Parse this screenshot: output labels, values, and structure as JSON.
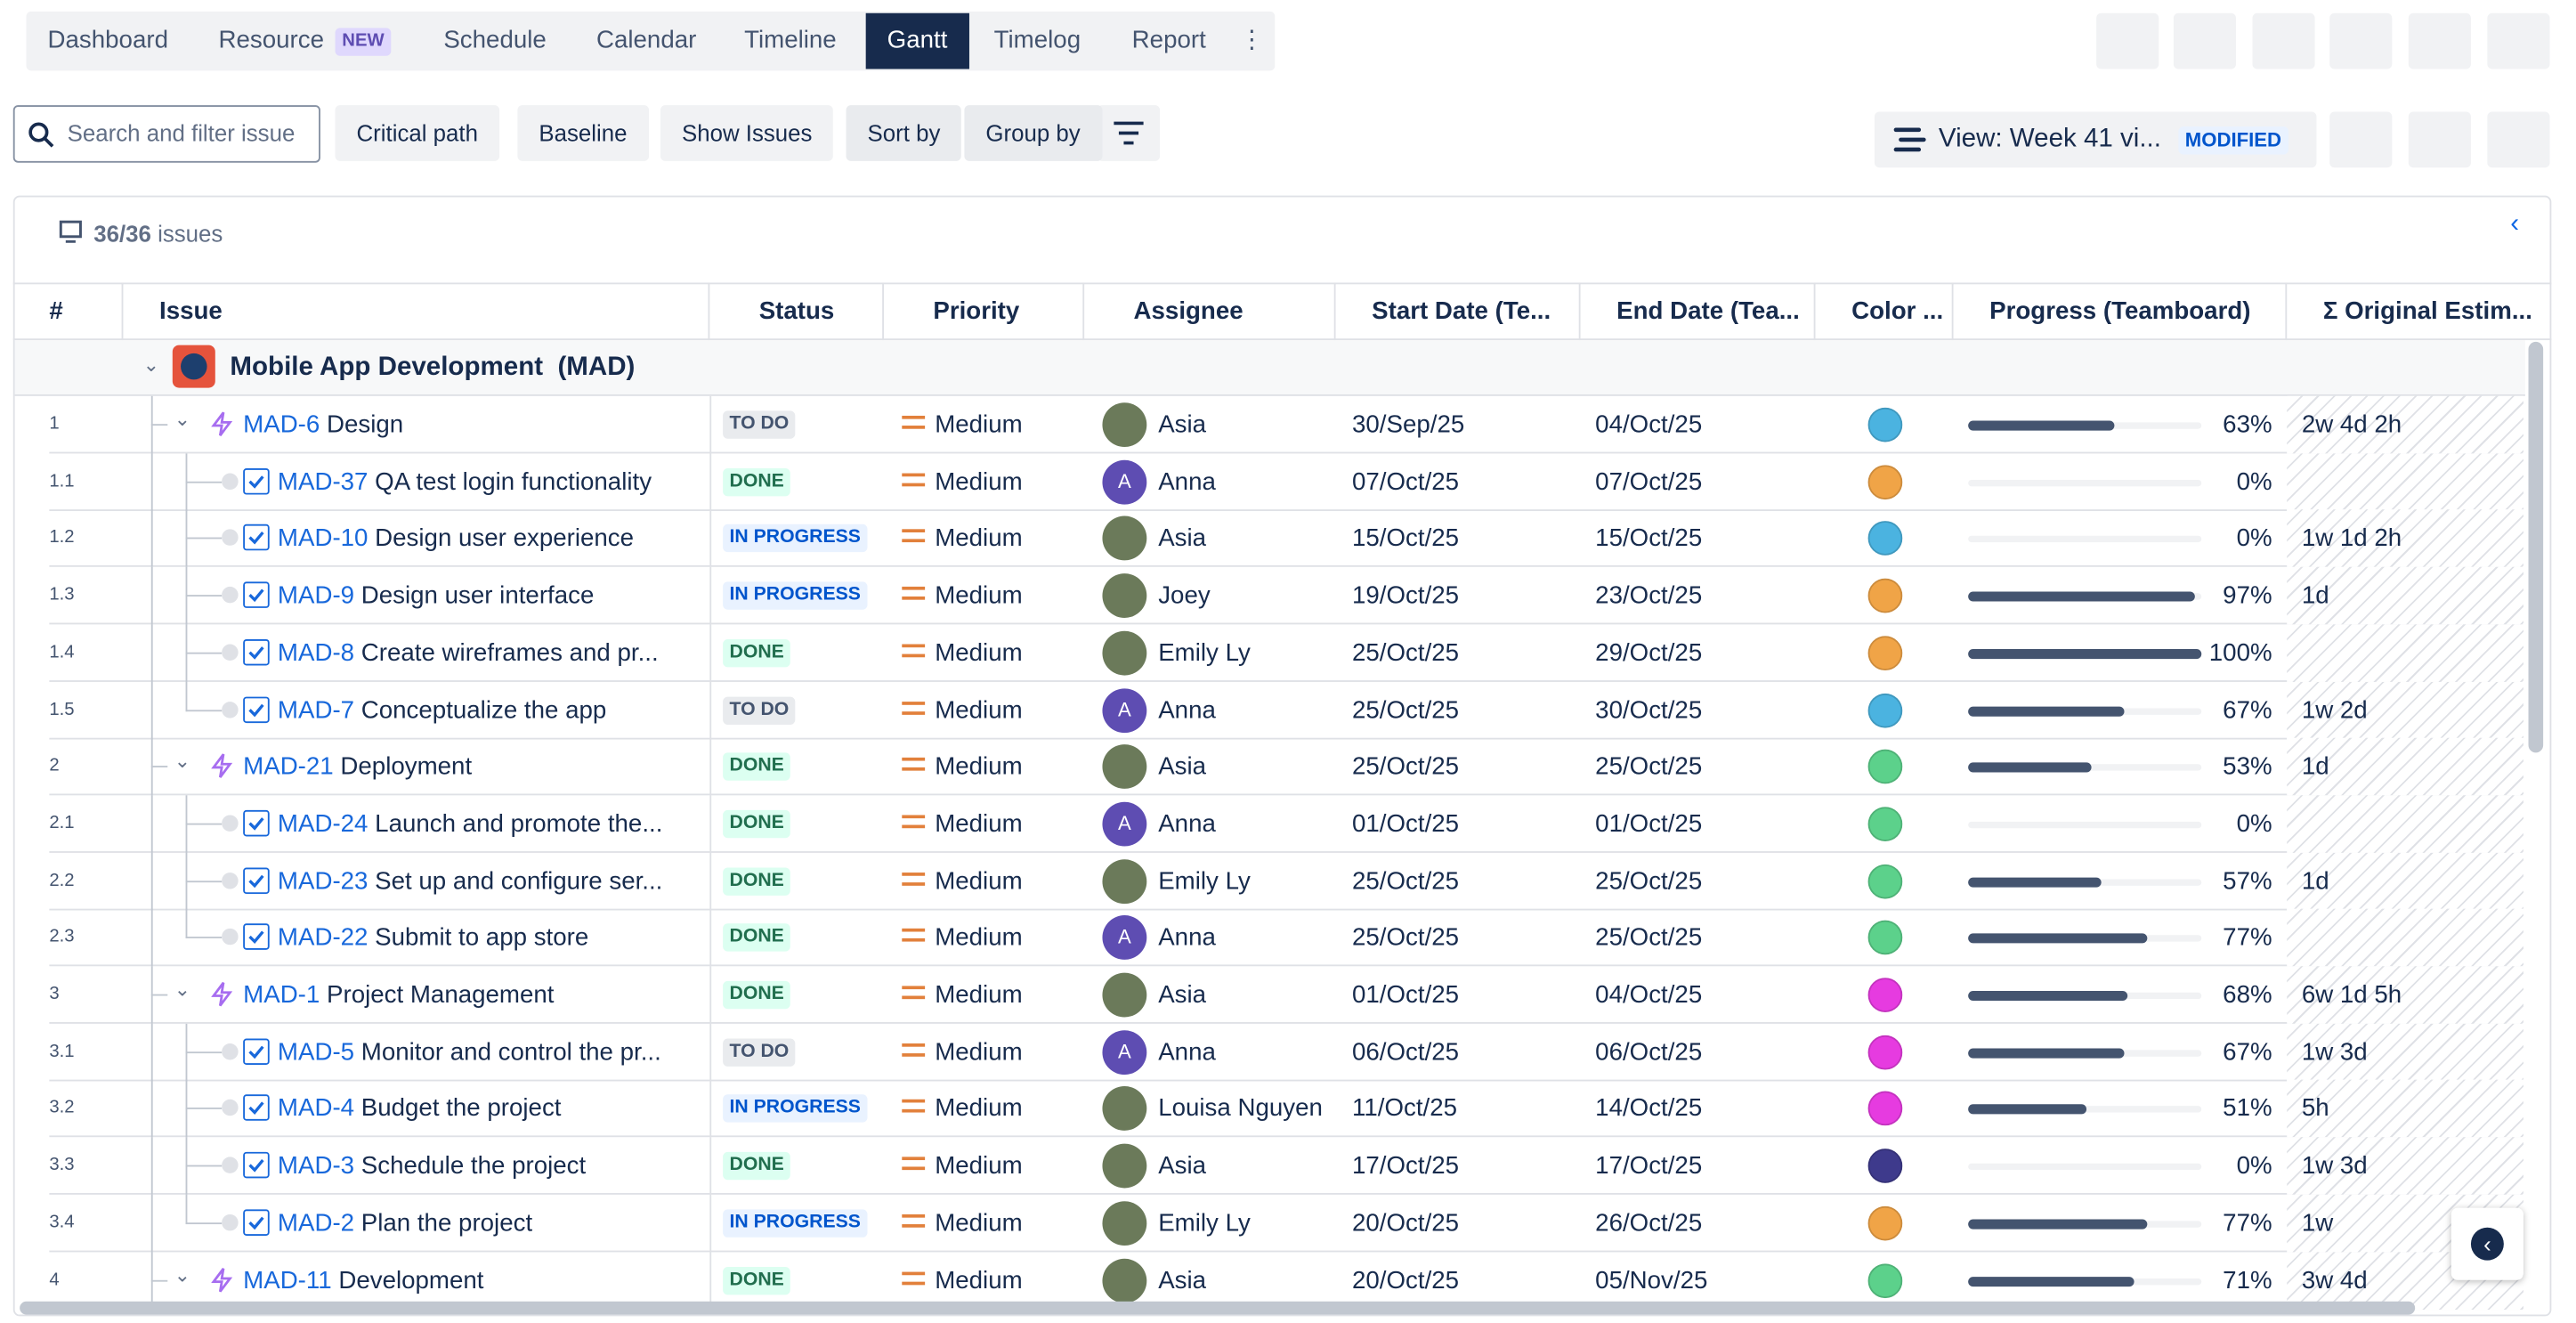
{
  "nav": {
    "tabs": [
      "Dashboard",
      "Resource",
      "Schedule",
      "Calendar",
      "Timeline",
      "Gantt",
      "Timelog",
      "Report"
    ],
    "new_badge": "NEW",
    "active": 5
  },
  "toolbar": {
    "search_placeholder": "Search and filter issue",
    "buttons": [
      "Critical path",
      "Baseline",
      "Show Issues",
      "Sort by",
      "Group by"
    ],
    "view": "View: Week 41 vi...",
    "view_badge": "MODIFIED"
  },
  "summary": {
    "count": "36/36",
    "unit": "issues"
  },
  "table": {
    "columns": [
      "#",
      "Issue",
      "Status",
      "Priority",
      "Assignee",
      "Start Date (Te...",
      "End Date (Tea...",
      "Color ...",
      "Progress (Teamboard)",
      "Σ Original Estim..."
    ],
    "group": "Mobile App Development  (MAD)",
    "rows": [
      {
        "num": "1",
        "key": "MAD-6",
        "summary": "Design",
        "status": {
          "label": "TO DO",
          "fg": "#44546f",
          "bg": "#e9ebee"
        },
        "priority": "Medium",
        "assignee": "Asia",
        "start": "30/Sep/25",
        "end": "04/Oct/25",
        "color": "#4bb3e0",
        "progress": {
          "value": 63,
          "label": "63%"
        },
        "estimate": "2w 4d 2h"
      },
      {
        "num": "1.1",
        "key": "MAD-37",
        "summary": "QA test login functionality",
        "status": {
          "label": "DONE",
          "fg": "#216e4e",
          "bg": "#dcfff1"
        },
        "priority": "Medium",
        "assignee": "Anna",
        "initial": "A",
        "start": "07/Oct/25",
        "end": "07/Oct/25",
        "color": "#f0a447",
        "progress": {
          "value": 0,
          "label": "0%"
        }
      },
      {
        "num": "1.2",
        "key": "MAD-10",
        "summary": "Design user experience",
        "status": {
          "label": "IN PROGRESS",
          "fg": "#0055cc",
          "bg": "#e9f2ff"
        },
        "priority": "Medium",
        "assignee": "Asia",
        "start": "15/Oct/25",
        "end": "15/Oct/25",
        "color": "#4bb3e0",
        "progress": {
          "value": 0,
          "label": "0%"
        },
        "estimate": "1w 1d 2h"
      },
      {
        "num": "1.3",
        "key": "MAD-9",
        "summary": "Design user interface",
        "status": {
          "label": "IN PROGRESS",
          "fg": "#0055cc",
          "bg": "#e9f2ff"
        },
        "priority": "Medium",
        "assignee": "Joey",
        "start": "19/Oct/25",
        "end": "23/Oct/25",
        "color": "#f0a447",
        "progress": {
          "value": 97,
          "label": "97%"
        },
        "estimate": "1d"
      },
      {
        "num": "1.4",
        "key": "MAD-8",
        "summary": "Create wireframes and pr...",
        "status": {
          "label": "DONE",
          "fg": "#216e4e",
          "bg": "#dcfff1"
        },
        "priority": "Medium",
        "assignee": "Emily Ly",
        "start": "25/Oct/25",
        "end": "29/Oct/25",
        "color": "#f0a447",
        "progress": {
          "value": 100,
          "label": "100%"
        }
      },
      {
        "num": "1.5",
        "key": "MAD-7",
        "summary": "Conceptualize the app",
        "status": {
          "label": "TO DO",
          "fg": "#44546f",
          "bg": "#e9ebee"
        },
        "priority": "Medium",
        "assignee": "Anna",
        "initial": "A",
        "start": "25/Oct/25",
        "end": "30/Oct/25",
        "color": "#4bb3e0",
        "progress": {
          "value": 67,
          "label": "67%"
        },
        "estimate": "1w 2d"
      },
      {
        "num": "2",
        "key": "MAD-21",
        "summary": "Deployment",
        "status": {
          "label": "DONE",
          "fg": "#216e4e",
          "bg": "#dcfff1"
        },
        "priority": "Medium",
        "assignee": "Asia",
        "start": "25/Oct/25",
        "end": "25/Oct/25",
        "color": "#5cd18b",
        "progress": {
          "value": 53,
          "label": "53%"
        },
        "estimate": "1d"
      },
      {
        "num": "2.1",
        "key": "MAD-24",
        "summary": "Launch and promote the...",
        "status": {
          "label": "DONE",
          "fg": "#216e4e",
          "bg": "#dcfff1"
        },
        "priority": "Medium",
        "assignee": "Anna",
        "initial": "A",
        "start": "01/Oct/25",
        "end": "01/Oct/25",
        "color": "#5cd18b",
        "progress": {
          "value": 0,
          "label": "0%"
        }
      },
      {
        "num": "2.2",
        "key": "MAD-23",
        "summary": "Set up and configure ser...",
        "status": {
          "label": "DONE",
          "fg": "#216e4e",
          "bg": "#dcfff1"
        },
        "priority": "Medium",
        "assignee": "Emily Ly",
        "start": "25/Oct/25",
        "end": "25/Oct/25",
        "color": "#5cd18b",
        "progress": {
          "value": 57,
          "label": "57%"
        },
        "estimate": "1d"
      },
      {
        "num": "2.3",
        "key": "MAD-22",
        "summary": "Submit to app store",
        "status": {
          "label": "DONE",
          "fg": "#216e4e",
          "bg": "#dcfff1"
        },
        "priority": "Medium",
        "assignee": "Anna",
        "initial": "A",
        "start": "25/Oct/25",
        "end": "25/Oct/25",
        "color": "#5cd18b",
        "progress": {
          "value": 77,
          "label": "77%"
        }
      },
      {
        "num": "3",
        "key": "MAD-1",
        "summary": "Project Management",
        "status": {
          "label": "DONE",
          "fg": "#216e4e",
          "bg": "#dcfff1"
        },
        "priority": "Medium",
        "assignee": "Asia",
        "start": "01/Oct/25",
        "end": "04/Oct/25",
        "color": "#e63be0",
        "progress": {
          "value": 68,
          "label": "68%"
        },
        "estimate": "6w 1d 5h"
      },
      {
        "num": "3.1",
        "key": "MAD-5",
        "summary": "Monitor and control the pr...",
        "status": {
          "label": "TO DO",
          "fg": "#44546f",
          "bg": "#e9ebee"
        },
        "priority": "Medium",
        "assignee": "Anna",
        "initial": "A",
        "start": "06/Oct/25",
        "end": "06/Oct/25",
        "color": "#e63be0",
        "progress": {
          "value": 67,
          "label": "67%"
        },
        "estimate": "1w 3d"
      },
      {
        "num": "3.2",
        "key": "MAD-4",
        "summary": "Budget the project",
        "status": {
          "label": "IN PROGRESS",
          "fg": "#0055cc",
          "bg": "#e9f2ff"
        },
        "priority": "Medium",
        "assignee": "Louisa Nguyen",
        "start": "11/Oct/25",
        "end": "14/Oct/25",
        "color": "#e63be0",
        "progress": {
          "value": 51,
          "label": "51%"
        },
        "estimate": "5h"
      },
      {
        "num": "3.3",
        "key": "MAD-3",
        "summary": "Schedule the project",
        "status": {
          "label": "DONE",
          "fg": "#216e4e",
          "bg": "#dcfff1"
        },
        "priority": "Medium",
        "assignee": "Asia",
        "start": "17/Oct/25",
        "end": "17/Oct/25",
        "color": "#3e3a8c",
        "progress": {
          "value": 0,
          "label": "0%"
        },
        "estimate": "1w 3d"
      },
      {
        "num": "3.4",
        "key": "MAD-2",
        "summary": "Plan the project",
        "status": {
          "label": "IN PROGRESS",
          "fg": "#0055cc",
          "bg": "#e9f2ff"
        },
        "priority": "Medium",
        "assignee": "Emily Ly",
        "start": "20/Oct/25",
        "end": "26/Oct/25",
        "color": "#f0a447",
        "progress": {
          "value": 77,
          "label": "77%"
        },
        "estimate": "1w"
      },
      {
        "num": "4",
        "key": "MAD-11",
        "summary": "Development",
        "status": {
          "label": "DONE",
          "fg": "#216e4e",
          "bg": "#dcfff1"
        },
        "priority": "Medium",
        "assignee": "Asia",
        "start": "20/Oct/25",
        "end": "05/Nov/25",
        "color": "#5cd18b",
        "progress": {
          "value": 71,
          "label": "71%"
        },
        "estimate": "3w 4d"
      }
    ]
  }
}
